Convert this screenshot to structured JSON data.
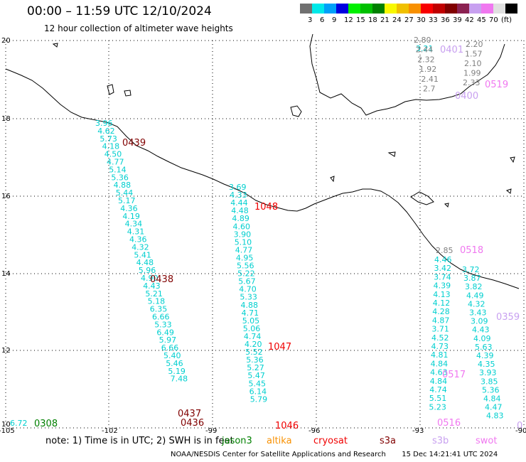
{
  "header": {
    "title": "00:00 – 11:59 UTC 12/10/2024",
    "subtitle": "12 hour collection of altimeter wave heights"
  },
  "colorbar": {
    "colors": [
      "#707070",
      "#00e8e8",
      "#00a0f8",
      "#0000e0",
      "#00f000",
      "#00c000",
      "#008000",
      "#f8f800",
      "#f0c000",
      "#f89000",
      "#f80000",
      "#c00000",
      "#800000",
      "#8b2252",
      "#c8a0f0",
      "#f078f0",
      "#e0e0e0",
      "#000000"
    ],
    "ticks": [
      "3",
      "6",
      "9",
      "12",
      "15",
      "18",
      "21",
      "24",
      "27",
      "30",
      "33",
      "36",
      "39",
      "42",
      "45",
      "70",
      "(ft)"
    ]
  },
  "axes": {
    "lat_ticks": [
      "20",
      "18",
      "16",
      "14",
      "12",
      "10"
    ],
    "lon_ticks": [
      "-105",
      "-102",
      "-99",
      "-96",
      "-93",
      "-90"
    ]
  },
  "tracks": [
    {
      "color": "#00cfcf",
      "values": [
        "3.96",
        "4.62",
        "5.73",
        "4.18",
        "4.50",
        "4.77",
        "5.14",
        "5.36",
        "4.88",
        "5.44",
        "5.17",
        "4.36",
        "4.19",
        "4.34",
        "4.31",
        "4.36",
        "4.32",
        "5.41",
        "4.48",
        "5.96",
        "4.90",
        "4.43",
        "5.21",
        "5.18",
        "6.35",
        "6.66",
        "5.33",
        "6.49",
        "5.97",
        "6.66",
        "5.40",
        "5.46",
        "5.19",
        "7.48"
      ]
    },
    {
      "color": "#00cfcf",
      "values": [
        "3.69",
        "4.33",
        "4.44",
        "4.48",
        "4.89",
        "4.60",
        "3.90",
        "5.10",
        "4.77",
        "4.95",
        "5.56",
        "5.22",
        "5.67",
        "4.70",
        "5.33",
        "4.88",
        "4.71",
        "5.05",
        "5.06",
        "4.74",
        "4.20",
        "5.52",
        "5.36",
        "5.27",
        "5.47",
        "5.45",
        "6.14",
        "5.79"
      ]
    },
    {
      "color": "#00cfcf",
      "values": [
        "4.46",
        "3.42",
        "3.74",
        "4.39",
        "4.13",
        "4.12",
        "4.28",
        "4.87",
        "3.71",
        "4.52",
        "4.73",
        "4.81",
        "4.84",
        "4.63",
        "4.84",
        "4.74",
        "5.51",
        "5.23"
      ]
    },
    {
      "color": "#00cfcf",
      "values": [
        "3.72",
        "3.87",
        "3.82",
        "4.49",
        "4.32",
        "3.43",
        "3.09",
        "4.43",
        "4.09",
        "5.63",
        "4.39",
        "4.35",
        "3.93",
        "3.85",
        "5.36",
        "4.84",
        "4.47",
        "4.83"
      ]
    },
    {
      "color": "#00cfcf",
      "values": [
        "3.21"
      ]
    },
    {
      "color": "#00cfcf",
      "values": [
        "6.72"
      ]
    },
    {
      "color": "#808080",
      "values": [
        "2.80",
        "2.44",
        "2.32",
        "1.92",
        "2.41",
        "2.7"
      ]
    },
    {
      "color": "#808080",
      "values": [
        "2.20",
        "1.57",
        "2.10",
        "1.99",
        "2.33"
      ]
    },
    {
      "color": "#808080",
      "values": [
        "2.85"
      ]
    }
  ],
  "pass_labels": [
    {
      "text": "0439",
      "color": "#800000"
    },
    {
      "text": "1048",
      "color": "#f00000"
    },
    {
      "text": "0438",
      "color": "#800000"
    },
    {
      "text": "1047",
      "color": "#f00000"
    },
    {
      "text": "0437",
      "color": "#800000"
    },
    {
      "text": "0436",
      "color": "#800000"
    },
    {
      "text": "1046",
      "color": "#f00000"
    },
    {
      "text": "0308",
      "color": "#008000"
    },
    {
      "text": "0401",
      "color": "#c8a0f0"
    },
    {
      "text": "0519",
      "color": "#f078f0"
    },
    {
      "text": "0400",
      "color": "#c8a0f0"
    },
    {
      "text": "0518",
      "color": "#f078f0"
    },
    {
      "text": "0359",
      "color": "#c8a0f0"
    },
    {
      "text": "0517",
      "color": "#f078f0"
    },
    {
      "text": "0516",
      "color": "#f078f0"
    },
    {
      "text": "0",
      "color": "#c8a0f0"
    }
  ],
  "note": {
    "text": "note:  1) Time is in UTC;  2) SWH is in feet",
    "satellites": [
      {
        "name": "jason3",
        "color": "#008000"
      },
      {
        "name": "altika",
        "color": "#f89000"
      },
      {
        "name": "cryosat",
        "color": "#f00000"
      },
      {
        "name": "s3a",
        "color": "#800000"
      },
      {
        "name": "s3b",
        "color": "#c8a0f0"
      },
      {
        "name": "swot",
        "color": "#f078f0"
      }
    ]
  },
  "footer": {
    "credit": "NOAA/NESDIS Center for Satellite Applications and Research",
    "timestamp": "15 Dec 14:21:41 UTC 2024"
  }
}
